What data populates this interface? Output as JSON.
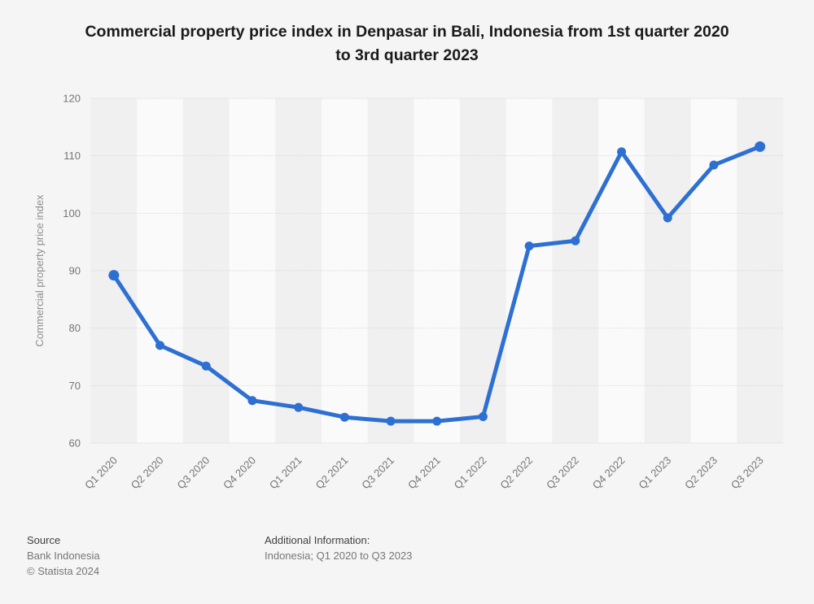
{
  "header": {
    "title_lines": [
      "Commercial property price index in Denpasar in Bali, Indonesia from 1st quarter 2020",
      "to 3rd quarter 2023"
    ]
  },
  "chart_data": {
    "type": "line",
    "title": "Commercial property price index in Denpasar in Bali, Indonesia from 1st quarter 2020 to 3rd quarter 2023",
    "categories": [
      "Q1 2020",
      "Q2 2020",
      "Q3 2020",
      "Q4 2020",
      "Q1 2021",
      "Q2 2021",
      "Q3 2021",
      "Q4 2021",
      "Q1 2022",
      "Q2 2022",
      "Q3 2022",
      "Q4 2022",
      "Q1 2023",
      "Q2 2023",
      "Q3 2023"
    ],
    "values": [
      89.2,
      77,
      73.4,
      67.4,
      66.2,
      64.5,
      63.8,
      63.8,
      64.6,
      94.3,
      95.2,
      110.7,
      99.2,
      108.4,
      111.6
    ],
    "xlabel": "",
    "ylabel": "Commercial property price index",
    "ylim": [
      60,
      120
    ],
    "yticks": [
      60,
      70,
      80,
      90,
      100,
      110,
      120
    ],
    "grid": "horizontal-dotted",
    "legend": "none",
    "line_color": "#2E70D2",
    "marker": "circle",
    "band_colors": [
      "#F0F0F1",
      "#FAFAFA"
    ],
    "background": "#F5F5F5",
    "grid_color": "#CBCBCB",
    "tick_color": "#767676",
    "axis_title_color": "#8E8E8E"
  },
  "footer": {
    "source_label": "Source",
    "source_name": "Bank Indonesia",
    "copyright": "© Statista 2024",
    "additional_label": "Additional Information:",
    "additional_text": "Indonesia; Q1 2020 to Q3 2023"
  }
}
